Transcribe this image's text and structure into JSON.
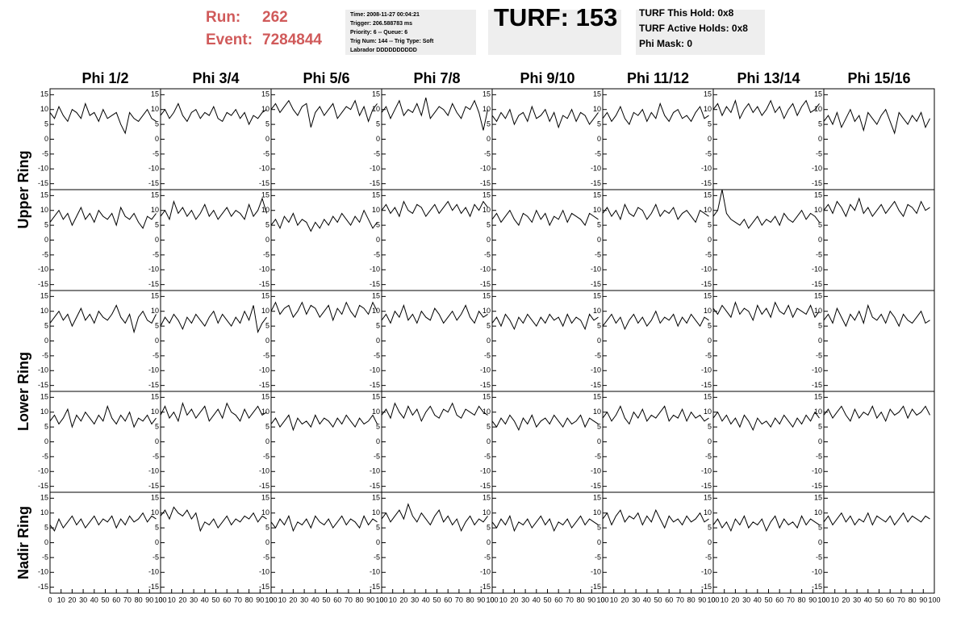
{
  "header": {
    "run_label": "Run:",
    "run": "262",
    "event_label": "Event:",
    "event": "7284844",
    "info": [
      "Time: 2008-11-27 00:04:21",
      "Trigger: 206.588783 ms",
      "Priority: 6 -- Queue: 6",
      "Trig Num: 144 -- Trig Type: Soft",
      "Labrador DDDDDDDDDD"
    ],
    "turf": "TURF: 153",
    "turf_info": [
      "TURF This Hold: 0x8",
      "TURF Active Holds: 0x8",
      "Phi Mask: 0"
    ]
  },
  "chart_data": {
    "type": "line",
    "color": "#000000",
    "columns": [
      "Phi 1/2",
      "Phi 3/4",
      "Phi 5/6",
      "Phi 7/8",
      "Phi 9/10",
      "Phi 11/12",
      "Phi 13/14",
      "Phi 15/16"
    ],
    "row_labels": [
      "Upper Ring",
      "Lower Ring",
      "Nadir Ring"
    ],
    "ylim": [
      -17,
      17
    ],
    "yticks": [
      -15,
      -10,
      -5,
      0,
      5,
      10,
      15
    ],
    "xlim": [
      0,
      100
    ],
    "xticks": [
      0,
      10,
      20,
      30,
      40,
      50,
      60,
      70,
      80,
      90,
      100
    ],
    "x": [
      0,
      4,
      8,
      12,
      16,
      20,
      24,
      28,
      32,
      36,
      40,
      44,
      48,
      52,
      56,
      60,
      64,
      68,
      72,
      76,
      80,
      84,
      88,
      92,
      96
    ],
    "panels": [
      [
        [
          9,
          7,
          11,
          8,
          6,
          10,
          9,
          7,
          12,
          8,
          9,
          6,
          10,
          7,
          8,
          9,
          5,
          2,
          9,
          7,
          6,
          8,
          10,
          7,
          6
        ],
        [
          8,
          10,
          7,
          9,
          12,
          8,
          6,
          9,
          10,
          7,
          9,
          8,
          11,
          7,
          6,
          9,
          8,
          10,
          7,
          9,
          5,
          8,
          7,
          9,
          10
        ],
        [
          10,
          12,
          9,
          11,
          13,
          10,
          8,
          11,
          12,
          4,
          9,
          11,
          8,
          10,
          12,
          7,
          9,
          11,
          10,
          13,
          8,
          11,
          6,
          10,
          12
        ],
        [
          9,
          11,
          7,
          10,
          13,
          8,
          10,
          9,
          12,
          8,
          14,
          7,
          9,
          11,
          10,
          8,
          12,
          9,
          7,
          11,
          10,
          13,
          9,
          3,
          10
        ],
        [
          8,
          6,
          9,
          7,
          10,
          5,
          8,
          9,
          6,
          11,
          7,
          8,
          10,
          6,
          9,
          4,
          8,
          7,
          10,
          6,
          9,
          8,
          5,
          7,
          9
        ],
        [
          7,
          9,
          6,
          8,
          11,
          7,
          5,
          9,
          8,
          10,
          6,
          9,
          7,
          12,
          8,
          6,
          9,
          10,
          7,
          8,
          6,
          9,
          11,
          7,
          8
        ],
        [
          10,
          12,
          8,
          11,
          9,
          13,
          7,
          10,
          12,
          9,
          11,
          8,
          10,
          13,
          9,
          11,
          7,
          10,
          12,
          8,
          11,
          13,
          9,
          10,
          12
        ],
        [
          6,
          8,
          5,
          9,
          4,
          7,
          10,
          6,
          8,
          3,
          9,
          7,
          5,
          8,
          10,
          6,
          2,
          9,
          7,
          5,
          8,
          6,
          9,
          4,
          7
        ]
      ],
      [
        [
          6,
          8,
          10,
          7,
          9,
          5,
          8,
          11,
          7,
          9,
          6,
          10,
          8,
          7,
          9,
          5,
          11,
          8,
          7,
          9,
          6,
          4,
          8,
          7,
          9
        ],
        [
          8,
          10,
          7,
          13,
          9,
          11,
          8,
          10,
          7,
          9,
          12,
          8,
          10,
          7,
          9,
          11,
          8,
          10,
          9,
          7,
          12,
          8,
          10,
          14,
          9
        ],
        [
          5,
          7,
          4,
          8,
          6,
          9,
          5,
          7,
          6,
          3,
          6,
          4,
          7,
          5,
          8,
          6,
          9,
          7,
          5,
          8,
          6,
          10,
          7,
          4,
          6
        ],
        [
          10,
          12,
          9,
          11,
          8,
          13,
          10,
          9,
          12,
          11,
          8,
          10,
          12,
          9,
          11,
          13,
          10,
          12,
          9,
          11,
          8,
          12,
          10,
          13,
          11
        ],
        [
          7,
          9,
          6,
          8,
          10,
          7,
          5,
          9,
          8,
          6,
          10,
          7,
          9,
          5,
          8,
          7,
          10,
          6,
          9,
          8,
          7,
          5,
          9,
          8,
          7
        ],
        [
          9,
          11,
          8,
          10,
          7,
          12,
          9,
          8,
          11,
          10,
          7,
          9,
          12,
          8,
          10,
          9,
          11,
          7,
          9,
          10,
          8,
          6,
          10,
          9,
          8
        ],
        [
          8,
          10,
          17,
          9,
          7,
          6,
          5,
          7,
          4,
          6,
          8,
          5,
          7,
          6,
          8,
          5,
          9,
          7,
          6,
          8,
          10,
          7,
          9,
          8,
          6
        ],
        [
          10,
          12,
          9,
          13,
          11,
          8,
          12,
          10,
          14,
          9,
          11,
          8,
          10,
          12,
          9,
          11,
          13,
          10,
          8,
          12,
          11,
          9,
          13,
          10,
          11
        ]
      ],
      [
        [
          6,
          8,
          10,
          7,
          9,
          5,
          8,
          11,
          7,
          9,
          6,
          10,
          8,
          7,
          9,
          12,
          8,
          6,
          9,
          3,
          8,
          10,
          7,
          6,
          9
        ],
        [
          5,
          8,
          6,
          9,
          7,
          4,
          8,
          6,
          9,
          7,
          5,
          8,
          10,
          6,
          9,
          7,
          5,
          8,
          6,
          10,
          7,
          12,
          3,
          6,
          8
        ],
        [
          10,
          13,
          9,
          11,
          12,
          8,
          10,
          13,
          9,
          12,
          11,
          8,
          10,
          12,
          7,
          11,
          9,
          13,
          10,
          8,
          12,
          11,
          9,
          13,
          10
        ],
        [
          7,
          9,
          6,
          10,
          8,
          12,
          7,
          9,
          6,
          10,
          8,
          7,
          11,
          9,
          6,
          8,
          10,
          7,
          9,
          12,
          8,
          6,
          10,
          8,
          9
        ],
        [
          6,
          8,
          5,
          9,
          7,
          4,
          8,
          6,
          9,
          7,
          5,
          8,
          6,
          9,
          7,
          8,
          5,
          9,
          6,
          8,
          7,
          4,
          9,
          7,
          8
        ],
        [
          5,
          7,
          9,
          6,
          8,
          4,
          7,
          9,
          6,
          8,
          5,
          7,
          10,
          6,
          8,
          7,
          9,
          5,
          8,
          6,
          9,
          7,
          5,
          8,
          7
        ],
        [
          11,
          9,
          12,
          10,
          8,
          13,
          9,
          11,
          10,
          7,
          12,
          9,
          11,
          8,
          13,
          10,
          9,
          12,
          8,
          11,
          10,
          9,
          12,
          8,
          10
        ],
        [
          7,
          9,
          6,
          11,
          8,
          5,
          9,
          7,
          10,
          6,
          12,
          8,
          7,
          9,
          6,
          10,
          8,
          5,
          9,
          7,
          6,
          8,
          10,
          6,
          7
        ]
      ],
      [
        [
          7,
          9,
          6,
          8,
          11,
          5,
          9,
          7,
          10,
          8,
          6,
          9,
          7,
          12,
          8,
          6,
          9,
          7,
          10,
          5,
          8,
          7,
          9,
          6,
          8
        ],
        [
          9,
          12,
          8,
          10,
          7,
          13,
          9,
          11,
          8,
          10,
          12,
          7,
          9,
          11,
          8,
          13,
          10,
          9,
          7,
          11,
          8,
          10,
          12,
          9,
          10
        ],
        [
          6,
          8,
          5,
          7,
          9,
          4,
          8,
          6,
          7,
          5,
          9,
          6,
          8,
          7,
          5,
          8,
          6,
          9,
          7,
          5,
          8,
          6,
          7,
          9,
          6
        ],
        [
          9,
          11,
          8,
          13,
          10,
          8,
          12,
          9,
          11,
          7,
          10,
          12,
          9,
          8,
          11,
          10,
          13,
          9,
          8,
          11,
          10,
          9,
          12,
          10,
          9
        ],
        [
          7,
          5,
          8,
          6,
          9,
          7,
          4,
          8,
          6,
          9,
          5,
          7,
          8,
          6,
          9,
          7,
          5,
          8,
          6,
          7,
          9,
          5,
          8,
          7,
          6
        ],
        [
          8,
          10,
          7,
          9,
          12,
          8,
          6,
          10,
          8,
          11,
          7,
          9,
          8,
          10,
          12,
          7,
          9,
          8,
          11,
          7,
          10,
          8,
          9,
          7,
          8
        ],
        [
          8,
          10,
          7,
          9,
          6,
          8,
          5,
          9,
          7,
          4,
          8,
          6,
          7,
          5,
          8,
          6,
          9,
          7,
          5,
          8,
          6,
          9,
          7,
          10,
          8
        ],
        [
          9,
          11,
          8,
          10,
          12,
          9,
          7,
          11,
          8,
          10,
          9,
          12,
          8,
          10,
          7,
          11,
          9,
          10,
          12,
          8,
          11,
          9,
          10,
          12,
          9
        ]
      ],
      [
        [
          6,
          4,
          8,
          5,
          7,
          9,
          6,
          8,
          5,
          7,
          9,
          6,
          8,
          7,
          9,
          5,
          8,
          6,
          9,
          7,
          8,
          10,
          7,
          9,
          8
        ],
        [
          9,
          11,
          8,
          12,
          10,
          9,
          11,
          8,
          10,
          4,
          7,
          6,
          8,
          5,
          7,
          9,
          6,
          8,
          7,
          9,
          8,
          10,
          7,
          9,
          8
        ],
        [
          7,
          5,
          8,
          6,
          9,
          4,
          7,
          6,
          8,
          5,
          9,
          7,
          6,
          8,
          5,
          7,
          9,
          6,
          8,
          7,
          5,
          9,
          6,
          8,
          7
        ],
        [
          8,
          10,
          7,
          9,
          11,
          8,
          13,
          9,
          7,
          10,
          8,
          6,
          9,
          11,
          7,
          9,
          6,
          8,
          4,
          7,
          9,
          6,
          8,
          7,
          9
        ],
        [
          7,
          5,
          8,
          6,
          9,
          4,
          7,
          6,
          8,
          5,
          7,
          9,
          6,
          8,
          4,
          7,
          6,
          8,
          5,
          7,
          9,
          6,
          8,
          7,
          6
        ],
        [
          8,
          10,
          6,
          9,
          11,
          7,
          9,
          8,
          10,
          6,
          9,
          7,
          11,
          8,
          5,
          9,
          7,
          8,
          6,
          9,
          7,
          8,
          10,
          7,
          8
        ],
        [
          6,
          8,
          5,
          7,
          4,
          8,
          6,
          9,
          5,
          7,
          6,
          8,
          4,
          7,
          9,
          5,
          8,
          6,
          7,
          5,
          9,
          6,
          8,
          7,
          6
        ],
        [
          7,
          9,
          6,
          8,
          10,
          7,
          9,
          6,
          8,
          7,
          10,
          6,
          9,
          8,
          7,
          9,
          6,
          8,
          10,
          7,
          9,
          8,
          7,
          9,
          8
        ]
      ]
    ]
  }
}
